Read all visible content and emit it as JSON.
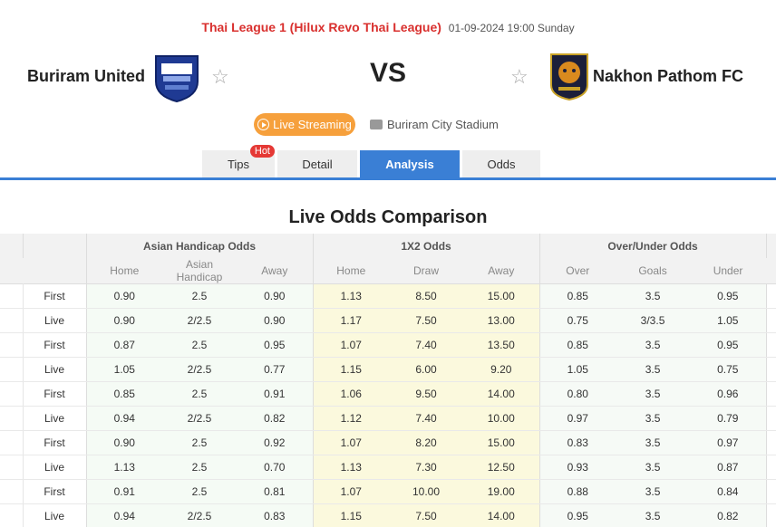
{
  "league": {
    "name": "Thai League 1 (Hilux Revo Thai League)",
    "datetime": "01-09-2024 19:00 Sunday"
  },
  "teams": {
    "home": "Buriram United",
    "away": "Nakhon Pathom FC",
    "vs": "VS"
  },
  "live_streaming": "Live Streaming",
  "stadium": "Buriram City Stadium",
  "tabs": {
    "tips": "Tips",
    "hot": "Hot",
    "detail": "Detail",
    "analysis": "Analysis",
    "odds": "Odds"
  },
  "section_title": "Live Odds Comparison",
  "groups": {
    "ah": "Asian Handicap Odds",
    "x12": "1X2 Odds",
    "ou": "Over/Under Odds"
  },
  "subheads": {
    "ah": [
      "Home",
      "Asian Handicap",
      "Away"
    ],
    "x12": [
      "Home",
      "Draw",
      "Away"
    ],
    "ou": [
      "Over",
      "Goals",
      "Under"
    ]
  },
  "rows": [
    {
      "label": "First",
      "ah": [
        "0.90",
        "2.5",
        "0.90"
      ],
      "x12": [
        "1.13",
        "8.50",
        "15.00"
      ],
      "ou": [
        "0.85",
        "3.5",
        "0.95"
      ]
    },
    {
      "label": "Live",
      "ah": [
        "0.90",
        "2/2.5",
        "0.90"
      ],
      "x12": [
        "1.17",
        "7.50",
        "13.00"
      ],
      "ou": [
        "0.75",
        "3/3.5",
        "1.05"
      ]
    },
    {
      "label": "First",
      "ah": [
        "0.87",
        "2.5",
        "0.95"
      ],
      "x12": [
        "1.07",
        "7.40",
        "13.50"
      ],
      "ou": [
        "0.85",
        "3.5",
        "0.95"
      ]
    },
    {
      "label": "Live",
      "ah": [
        "1.05",
        "2/2.5",
        "0.77"
      ],
      "x12": [
        "1.15",
        "6.00",
        "9.20"
      ],
      "ou": [
        "1.05",
        "3.5",
        "0.75"
      ]
    },
    {
      "label": "First",
      "ah": [
        "0.85",
        "2.5",
        "0.91"
      ],
      "x12": [
        "1.06",
        "9.50",
        "14.00"
      ],
      "ou": [
        "0.80",
        "3.5",
        "0.96"
      ]
    },
    {
      "label": "Live",
      "ah": [
        "0.94",
        "2/2.5",
        "0.82"
      ],
      "x12": [
        "1.12",
        "7.40",
        "10.00"
      ],
      "ou": [
        "0.97",
        "3.5",
        "0.79"
      ]
    },
    {
      "label": "First",
      "ah": [
        "0.90",
        "2.5",
        "0.92"
      ],
      "x12": [
        "1.07",
        "8.20",
        "15.00"
      ],
      "ou": [
        "0.83",
        "3.5",
        "0.97"
      ]
    },
    {
      "label": "Live",
      "ah": [
        "1.13",
        "2.5",
        "0.70"
      ],
      "x12": [
        "1.13",
        "7.30",
        "12.50"
      ],
      "ou": [
        "0.93",
        "3.5",
        "0.87"
      ]
    },
    {
      "label": "First",
      "ah": [
        "0.91",
        "2.5",
        "0.81"
      ],
      "x12": [
        "1.07",
        "10.00",
        "19.00"
      ],
      "ou": [
        "0.88",
        "3.5",
        "0.84"
      ]
    },
    {
      "label": "Live",
      "ah": [
        "0.94",
        "2/2.5",
        "0.83"
      ],
      "x12": [
        "1.15",
        "7.50",
        "14.00"
      ],
      "ou": [
        "0.95",
        "3.5",
        "0.82"
      ]
    }
  ],
  "colors": {
    "accent": "#3a7fd5",
    "league_red": "#d9302e",
    "live_orange": "#f6a03c"
  }
}
